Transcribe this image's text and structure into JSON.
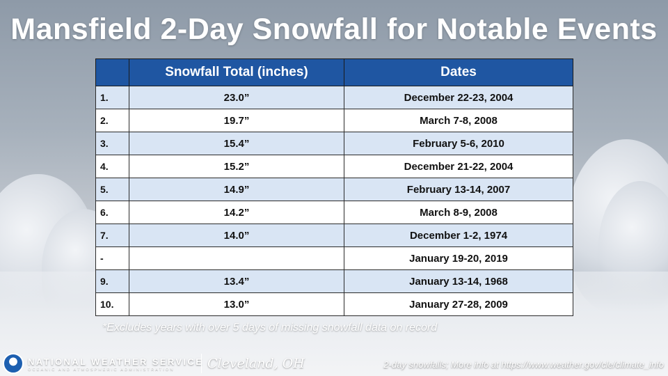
{
  "title": "Mansfield 2-Day Snowfall for Notable Events",
  "table": {
    "headers": [
      "",
      "Snowfall Total (inches)",
      "Dates"
    ],
    "rows": [
      {
        "rank": "1.",
        "total": "23.0”",
        "dates": "December 22-23, 2004"
      },
      {
        "rank": "2.",
        "total": "19.7”",
        "dates": "March 7-8, 2008"
      },
      {
        "rank": "3.",
        "total": "15.4”",
        "dates": "February 5-6, 2010"
      },
      {
        "rank": "4.",
        "total": "15.2”",
        "dates": "December 21-22, 2004"
      },
      {
        "rank": "5.",
        "total": "14.9”",
        "dates": "February 13-14, 2007"
      },
      {
        "rank": "6.",
        "total": "14.2”",
        "dates": "March 8-9, 2008"
      },
      {
        "rank": "7.",
        "total": "14.0”",
        "dates": "December 1-2, 1974"
      },
      {
        "rank": "-",
        "total": "",
        "dates": "January 19-20, 2019"
      },
      {
        "rank": "9.",
        "total": "13.4”",
        "dates": "January 13-14, 1968"
      },
      {
        "rank": "10.",
        "total": "13.0”",
        "dates": "January 27-28, 2009"
      }
    ]
  },
  "footnote": "*Excludes years with over 5 days of missing snowfall data on record",
  "footer": {
    "org_name": "NATIONAL WEATHER SERVICE",
    "org_sub": "OCEANIC AND ATMOSPHERIC ADMINISTRATION",
    "office": "Cleveland, OH",
    "more_info": "2-day snowfalls; More info at https://www.weather.gov/cle/climate_info",
    "logo_icon": "noaa-logo-icon"
  },
  "colors": {
    "header_bg": "#1f56a2",
    "row_alt": "#d9e5f4",
    "row_plain": "#ffffff"
  }
}
